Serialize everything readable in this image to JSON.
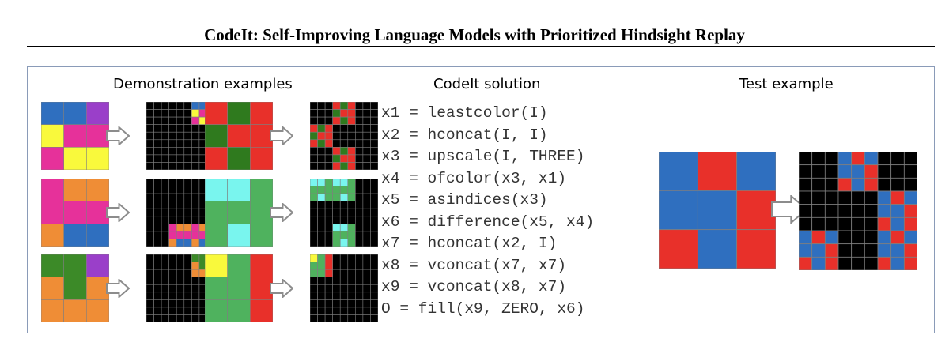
{
  "title": "CodeIt: Self-Improving Language Models with Prioritized Hindsight Replay",
  "labels": {
    "demos": "Demonstration examples",
    "solution": "CodeIt solution",
    "test": "Test example"
  },
  "code_lines": [
    "x1 = leastcolor(I)",
    "x2 = hconcat(I, I)",
    "x3 = upscale(I, THREE)",
    "x4 = ofcolor(x3, x1)",
    "x5 = asindices(x3)",
    "x6 = difference(x5, x4)",
    "x7 = hconcat(x2, I)",
    "x8 = vconcat(x7, x7)",
    "x9 = vconcat(x8, x7)",
    "O = fill(x9, ZERO, x6)"
  ],
  "colors": {
    "0": "#000000",
    "B": "#2f6fbf",
    "R": "#e8302a",
    "G": "#2f7a1e",
    "Y": "#f9f93c",
    "P": "#e6319a",
    "O": "#ef8d36",
    "V": "#9a3fc9",
    "C": "#79f5ee",
    "L": "#4fb25e",
    "D": "#3c8a28"
  },
  "inputs": {
    "demo1": [
      "BBV",
      "YPP",
      "PYY"
    ],
    "demo2": [
      "RGR",
      "GRR",
      "RGR"
    ],
    "demo3": [
      "POO",
      "PPP",
      "OBB"
    ],
    "demo4": [
      "CCL",
      "LLL",
      "LCL"
    ],
    "demo5": [
      "DDV",
      "ODO",
      "OOO"
    ],
    "demo6": [
      "YLR",
      "LLR",
      "LLR"
    ],
    "test": [
      "BRB",
      "BBR",
      "RBR"
    ]
  }
}
